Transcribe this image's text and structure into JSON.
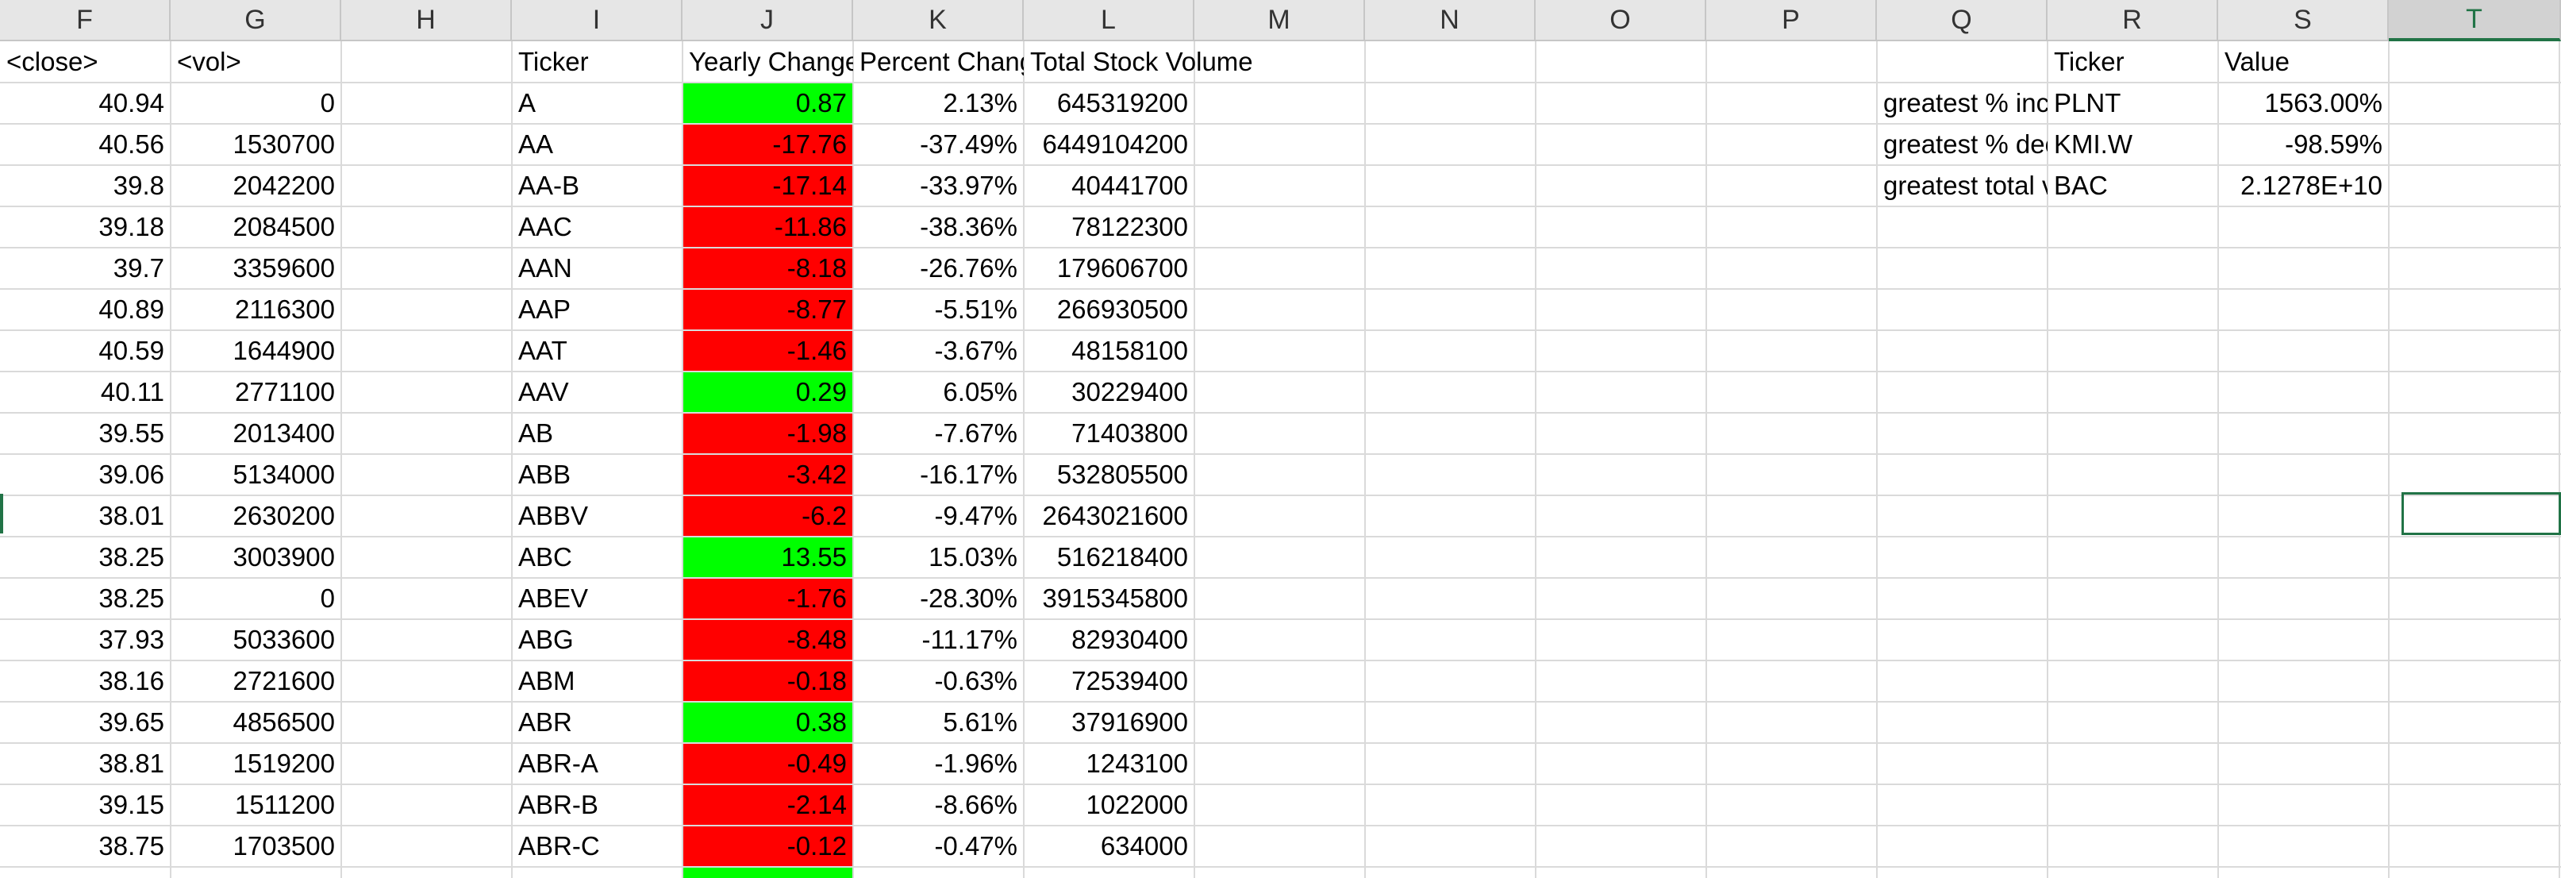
{
  "columns": [
    "F",
    "G",
    "H",
    "I",
    "J",
    "K",
    "L",
    "M",
    "N",
    "O",
    "P",
    "Q",
    "R",
    "S",
    "T"
  ],
  "selected_column": "T",
  "headers": {
    "F": "<close>",
    "G": "<vol>",
    "I": "Ticker",
    "J": "Yearly Change",
    "K": "Percent Change",
    "L": "Total Stock Volume",
    "R": "Ticker",
    "S": "Value"
  },
  "rows": [
    {
      "close": "40.94",
      "vol": "0",
      "ticker": "A",
      "change": "0.87",
      "positive": true,
      "pct": "2.13%",
      "volume": "645319200"
    },
    {
      "close": "40.56",
      "vol": "1530700",
      "ticker": "AA",
      "change": "-17.76",
      "positive": false,
      "pct": "-37.49%",
      "volume": "6449104200"
    },
    {
      "close": "39.8",
      "vol": "2042200",
      "ticker": "AA-B",
      "change": "-17.14",
      "positive": false,
      "pct": "-33.97%",
      "volume": "40441700"
    },
    {
      "close": "39.18",
      "vol": "2084500",
      "ticker": "AAC",
      "change": "-11.86",
      "positive": false,
      "pct": "-38.36%",
      "volume": "78122300"
    },
    {
      "close": "39.7",
      "vol": "3359600",
      "ticker": "AAN",
      "change": "-8.18",
      "positive": false,
      "pct": "-26.76%",
      "volume": "179606700"
    },
    {
      "close": "40.89",
      "vol": "2116300",
      "ticker": "AAP",
      "change": "-8.77",
      "positive": false,
      "pct": "-5.51%",
      "volume": "266930500"
    },
    {
      "close": "40.59",
      "vol": "1644900",
      "ticker": "AAT",
      "change": "-1.46",
      "positive": false,
      "pct": "-3.67%",
      "volume": "48158100"
    },
    {
      "close": "40.11",
      "vol": "2771100",
      "ticker": "AAV",
      "change": "0.29",
      "positive": true,
      "pct": "6.05%",
      "volume": "30229400"
    },
    {
      "close": "39.55",
      "vol": "2013400",
      "ticker": "AB",
      "change": "-1.98",
      "positive": false,
      "pct": "-7.67%",
      "volume": "71403800"
    },
    {
      "close": "39.06",
      "vol": "5134000",
      "ticker": "ABB",
      "change": "-3.42",
      "positive": false,
      "pct": "-16.17%",
      "volume": "532805500"
    },
    {
      "close": "38.01",
      "vol": "2630200",
      "ticker": "ABBV",
      "change": "-6.2",
      "positive": false,
      "pct": "-9.47%",
      "volume": "2643021600"
    },
    {
      "close": "38.25",
      "vol": "3003900",
      "ticker": "ABC",
      "change": "13.55",
      "positive": true,
      "pct": "15.03%",
      "volume": "516218400"
    },
    {
      "close": "38.25",
      "vol": "0",
      "ticker": "ABEV",
      "change": "-1.76",
      "positive": false,
      "pct": "-28.30%",
      "volume": "3915345800"
    },
    {
      "close": "37.93",
      "vol": "5033600",
      "ticker": "ABG",
      "change": "-8.48",
      "positive": false,
      "pct": "-11.17%",
      "volume": "82930400"
    },
    {
      "close": "38.16",
      "vol": "2721600",
      "ticker": "ABM",
      "change": "-0.18",
      "positive": false,
      "pct": "-0.63%",
      "volume": "72539400"
    },
    {
      "close": "39.65",
      "vol": "4856500",
      "ticker": "ABR",
      "change": "0.38",
      "positive": true,
      "pct": "5.61%",
      "volume": "37916900"
    },
    {
      "close": "38.81",
      "vol": "1519200",
      "ticker": "ABR-A",
      "change": "-0.49",
      "positive": false,
      "pct": "-1.96%",
      "volume": "1243100"
    },
    {
      "close": "39.15",
      "vol": "1511200",
      "ticker": "ABR-B",
      "change": "-2.14",
      "positive": false,
      "pct": "-8.66%",
      "volume": "1022000"
    },
    {
      "close": "38.75",
      "vol": "1703500",
      "ticker": "ABR-C",
      "change": "-0.12",
      "positive": false,
      "pct": "-0.47%",
      "volume": "634000"
    }
  ],
  "summary": [
    {
      "label": "greatest % increase",
      "ticker": "PLNT",
      "value": "1563.00%"
    },
    {
      "label": "greatest % decrease",
      "ticker": "KMI.W",
      "value": "-98.59%"
    },
    {
      "label": "greatest total volume",
      "ticker": "BAC",
      "value": "2.1278E+10"
    }
  ],
  "colors": {
    "positive": "#00ff00",
    "negative": "#ff0000",
    "grid": "#dadada",
    "header_bg": "#e6e6e6",
    "accent": "#217346"
  }
}
